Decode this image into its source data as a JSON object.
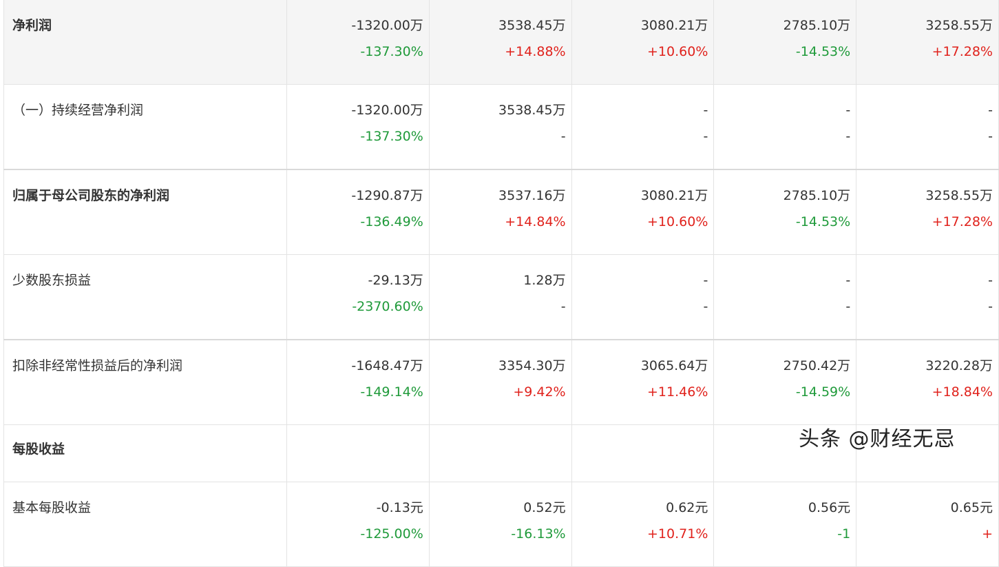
{
  "rows": [
    {
      "label": "净利润",
      "bold": true,
      "gray": true,
      "values": [
        "-1320.00万",
        "3538.45万",
        "3080.21万",
        "2785.10万",
        "3258.55万"
      ],
      "changes": [
        "-137.30%",
        "+14.88%",
        "+10.60%",
        "-14.53%",
        "+17.28%"
      ]
    },
    {
      "label": "（一）持续经营净利润",
      "bold": false,
      "values": [
        "-1320.00万",
        "3538.45万",
        "-",
        "-",
        "-"
      ],
      "changes": [
        "-137.30%",
        "-",
        "-",
        "-",
        "-"
      ]
    },
    {
      "label": "归属于母公司股东的净利润",
      "bold": true,
      "values": [
        "-1290.87万",
        "3537.16万",
        "3080.21万",
        "2785.10万",
        "3258.55万"
      ],
      "changes": [
        "-136.49%",
        "+14.84%",
        "+10.60%",
        "-14.53%",
        "+17.28%"
      ]
    },
    {
      "label": "少数股东损益",
      "bold": false,
      "values": [
        "-29.13万",
        "1.28万",
        "-",
        "-",
        "-"
      ],
      "changes": [
        "-2370.60%",
        "-",
        "-",
        "-",
        "-"
      ]
    },
    {
      "label": "扣除非经常性损益后的净利润",
      "bold": false,
      "values": [
        "-1648.47万",
        "3354.30万",
        "3065.64万",
        "2750.42万",
        "3220.28万"
      ],
      "changes": [
        "-149.14%",
        "+9.42%",
        "+11.46%",
        "-14.59%",
        "+18.84%"
      ]
    },
    {
      "label": "每股收益",
      "bold": true,
      "section": true
    },
    {
      "label": "基本每股收益",
      "bold": false,
      "values": [
        "-0.13元",
        "0.52元",
        "0.62元",
        "0.56元",
        "0.65元"
      ],
      "changes": [
        "-125.00%",
        "-16.13%",
        "+10.71%",
        "-1",
        "+"
      ]
    }
  ],
  "watermark": "头条 @财经无忌"
}
